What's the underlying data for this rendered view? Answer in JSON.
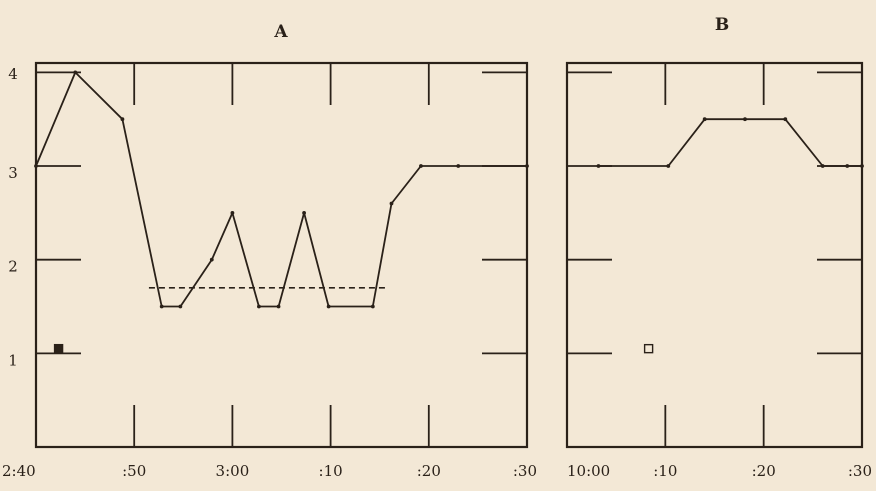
{
  "chart_data": [
    {
      "type": "line",
      "title": "A",
      "xlabel": "",
      "ylabel": "",
      "x_tick_labels": [
        {
          "t": 0,
          "label": "2:40"
        },
        {
          "t": 10,
          "label": ":50"
        },
        {
          "t": 20,
          "label": "3:00"
        },
        {
          "t": 30,
          "label": ":10"
        },
        {
          "t": 40,
          "label": ":20"
        },
        {
          "t": 50,
          "label": ":30"
        }
      ],
      "y_ticks": [
        1,
        2,
        3,
        4
      ],
      "xlim": [
        0,
        50
      ],
      "ylim": [
        0,
        4.1
      ],
      "series": [
        {
          "points": [
            [
              0,
              3.0
            ],
            [
              4,
              4.0
            ],
            [
              8.8,
              3.5
            ],
            [
              12.8,
              1.5
            ],
            [
              14.7,
              1.5
            ],
            [
              17.9,
              2.0
            ],
            [
              20.0,
              2.5
            ],
            [
              22.7,
              1.5
            ],
            [
              24.7,
              1.5
            ],
            [
              27.3,
              2.5
            ],
            [
              29.8,
              1.5
            ],
            [
              34.3,
              1.5
            ],
            [
              36.2,
              2.6
            ],
            [
              39.2,
              3.0
            ],
            [
              43.0,
              3.0
            ],
            [
              50.0,
              3.0
            ]
          ]
        }
      ],
      "reference_line": {
        "y": 1.7,
        "x": [
          11.5,
          35.7
        ]
      },
      "marker": {
        "x": 2.3,
        "y": 1.05,
        "style": "filled-square"
      }
    },
    {
      "type": "line",
      "title": "B",
      "xlabel": "",
      "ylabel": "",
      "x_tick_labels": [
        {
          "t": 0,
          "label": "10:00"
        },
        {
          "t": 10,
          "label": ":10"
        },
        {
          "t": 20,
          "label": ":20"
        },
        {
          "t": 30,
          "label": ":30"
        }
      ],
      "y_ticks": [
        1,
        2,
        3,
        4
      ],
      "xlim": [
        0,
        30
      ],
      "ylim": [
        0,
        4.1
      ],
      "series": [
        {
          "points": [
            [
              3.2,
              3.0
            ],
            [
              10.3,
              3.0
            ],
            [
              14.0,
              3.5
            ],
            [
              18.1,
              3.5
            ],
            [
              22.2,
              3.5
            ],
            [
              26.0,
              3.0
            ],
            [
              28.5,
              3.0
            ],
            [
              30.0,
              3.0
            ]
          ]
        }
      ],
      "marker": {
        "x": 8.3,
        "y": 1.05,
        "style": "open-square"
      }
    }
  ]
}
